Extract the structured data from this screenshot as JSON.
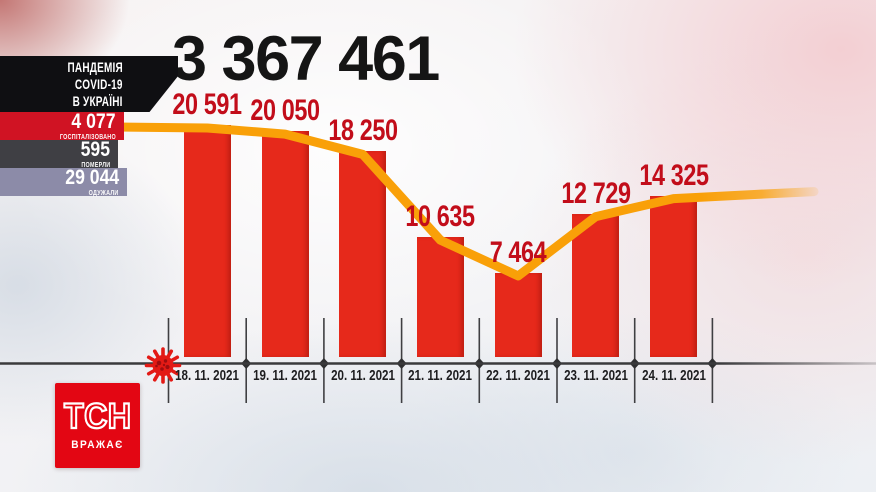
{
  "header": {
    "total_cases": "3 367 461"
  },
  "badge": {
    "line1": "ПАНДЕМІЯ",
    "line2": "COVID-19",
    "line3": "В УКРАЇНІ"
  },
  "stats": [
    {
      "value": "4 077",
      "label": "ГОСПІТАЛІЗОВАНО"
    },
    {
      "value": "595",
      "label": "ПОМЕРЛИ"
    },
    {
      "value": "29 044",
      "label": "ОДУЖАЛИ"
    }
  ],
  "logo": {
    "title": "ТСН",
    "tagline": "ВРАЖАЄ"
  },
  "chart_data": {
    "type": "bar",
    "title": "",
    "xlabel": "",
    "ylabel": "",
    "categories": [
      "18. 11. 2021",
      "19. 11. 2021",
      "20. 11. 2021",
      "21. 11. 2021",
      "22. 11. 2021",
      "23. 11. 2021",
      "24. 11. 2021"
    ],
    "values": [
      20591,
      20050,
      18250,
      10635,
      7464,
      12729,
      14325
    ],
    "value_labels": [
      "20 591",
      "20 050",
      "18 250",
      "10 635",
      "7 464",
      "12 729",
      "14 325"
    ],
    "ylim": [
      0,
      22000
    ],
    "grid": false,
    "legend": "none",
    "trend_line": true,
    "colors": {
      "bar": "#e6291b",
      "value_label": "#c20d1a",
      "trend": "#f9a008",
      "axis": "#3a3a3c",
      "tick": "#3f3f42",
      "date_label": "#1d1d1f",
      "virus_icon": "#e31a15"
    }
  },
  "panel_colors": {
    "badge_bg": "#0f0f12",
    "stat_hospitalized": "#d01323",
    "stat_died": "#3f3f44",
    "stat_recovered": "#8c8ba8",
    "logo_red": "#e30613",
    "total_text": "#151515"
  }
}
